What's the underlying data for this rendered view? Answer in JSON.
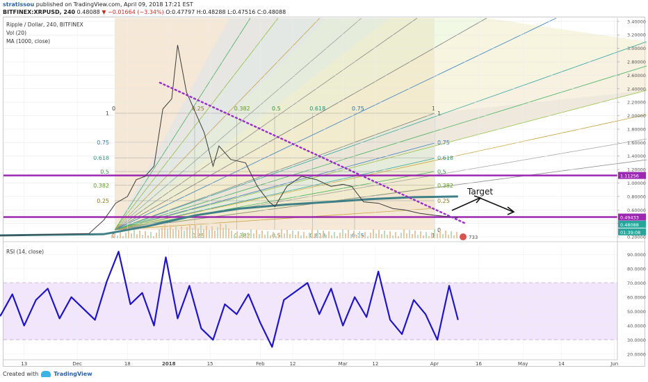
{
  "header": {
    "author": "stratissou",
    "published_text": "published on TradingView.com, April 09, 2018 17:21 EST",
    "symbol": "BITFINEX:XRPUSD, 240",
    "last": "0.48088",
    "change": "▼ −0.01664 (−3.34%)",
    "ohlc": "O:0.47797 H:0.48288 L:0.47516 C:0.48088"
  },
  "legend": {
    "title": "Ripple / Dollar, 240, BITFINEX",
    "vol": "Vol (20)",
    "ma": "MA (1000, close)",
    "rsi": "RSI (14, close)"
  },
  "annotations": {
    "target": "Target",
    "vol_badge": "733"
  },
  "footer": {
    "created": "Created with",
    "brand": "TradingView"
  },
  "colors": {
    "price": "#3a3a3a",
    "ma": "#3f7f86",
    "level": "#9c27b0",
    "rsi": "#1e14c8",
    "rsi_band": "#f1e6fb",
    "trendline": "#9b2fc9"
  },
  "chart_data": [
    {
      "type": "line",
      "title": "Ripple / Dollar, 240, BITFINEX",
      "xlabel": "",
      "ylabel": "",
      "x_ticks": [
        "13",
        "Dec",
        "18",
        "2018",
        "15",
        "Feb",
        "12",
        "Mar",
        "12",
        "Apr",
        "16",
        "May",
        "14",
        "Jun"
      ],
      "y_ticks": [
        "0.20000",
        "0.40000",
        "0.60000",
        "0.80000",
        "1.00000",
        "1.20000",
        "1.40000",
        "1.60000",
        "1.80000",
        "2.00000",
        "2.20000",
        "2.40000",
        "2.60000",
        "2.80000",
        "3.00000",
        "3.20000",
        "3.40000"
      ],
      "ylim": [
        0.18,
        3.45
      ],
      "grid": true,
      "price_labels": [
        "1.11256",
        "0.49433",
        "0.48088",
        "01:39:08"
      ],
      "horizontal_levels": [
        1.11256,
        0.49433
      ],
      "gann_fan_ratios": [
        "0.25",
        "0.382",
        "0.5",
        "0.618",
        "0.75",
        "1"
      ],
      "series": [
        {
          "name": "Ripple / Dollar",
          "x": [
            "2017-11-01",
            "2017-11-15",
            "2017-11-25",
            "2017-12-05",
            "2017-12-10",
            "2017-12-14",
            "2017-12-18",
            "2017-12-21",
            "2017-12-24",
            "2017-12-27",
            "2017-12-30",
            "2018-01-02",
            "2018-01-04",
            "2018-01-07",
            "2018-01-10",
            "2018-01-13",
            "2018-01-16",
            "2018-01-18",
            "2018-01-22",
            "2018-01-27",
            "2018-01-31",
            "2018-02-04",
            "2018-02-06",
            "2018-02-10",
            "2018-02-15",
            "2018-02-20",
            "2018-02-25",
            "2018-03-01",
            "2018-03-04",
            "2018-03-08",
            "2018-03-13",
            "2018-03-18",
            "2018-03-22",
            "2018-03-27",
            "2018-04-01",
            "2018-04-06",
            "2018-04-09"
          ],
          "values": [
            0.21,
            0.23,
            0.24,
            0.25,
            0.45,
            0.7,
            0.8,
            1.05,
            1.1,
            1.25,
            2.1,
            2.25,
            3.05,
            2.35,
            2.05,
            1.75,
            1.25,
            1.55,
            1.35,
            1.3,
            0.95,
            0.72,
            0.65,
            0.95,
            1.1,
            1.05,
            0.95,
            0.98,
            0.95,
            0.72,
            0.7,
            0.62,
            0.6,
            0.55,
            0.52,
            0.5,
            0.48
          ]
        },
        {
          "name": "MA (1000, close)",
          "x": [
            "2017-11-01",
            "2017-12-10",
            "2017-12-25",
            "2018-01-10",
            "2018-01-25",
            "2018-02-10",
            "2018-02-25",
            "2018-03-10",
            "2018-03-25",
            "2018-04-09"
          ],
          "values": [
            0.22,
            0.24,
            0.36,
            0.52,
            0.62,
            0.68,
            0.72,
            0.76,
            0.79,
            0.8
          ]
        }
      ]
    },
    {
      "type": "line",
      "title": "RSI (14, close)",
      "xlabel": "",
      "ylabel": "",
      "y_ticks": [
        "20.0000",
        "30.0000",
        "40.0000",
        "50.0000",
        "60.0000",
        "70.0000",
        "80.0000",
        "90.0000"
      ],
      "ylim": [
        16,
        96
      ],
      "bands": [
        30,
        70
      ],
      "series": [
        {
          "name": "RSI (14, close)",
          "x": [
            "2017-11-01",
            "2017-11-05",
            "2017-11-09",
            "2017-11-13",
            "2017-11-17",
            "2017-11-21",
            "2017-11-25",
            "2017-11-29",
            "2017-12-03",
            "2017-12-07",
            "2017-12-11",
            "2017-12-15",
            "2017-12-19",
            "2017-12-23",
            "2017-12-27",
            "2017-12-31",
            "2018-01-04",
            "2018-01-08",
            "2018-01-12",
            "2018-01-16",
            "2018-01-20",
            "2018-01-24",
            "2018-01-28",
            "2018-02-01",
            "2018-02-05",
            "2018-02-09",
            "2018-02-13",
            "2018-02-17",
            "2018-02-21",
            "2018-02-25",
            "2018-03-01",
            "2018-03-05",
            "2018-03-09",
            "2018-03-13",
            "2018-03-17",
            "2018-03-21",
            "2018-03-25",
            "2018-03-29",
            "2018-04-02",
            "2018-04-06",
            "2018-04-09"
          ],
          "values": [
            55,
            47,
            62,
            40,
            58,
            66,
            45,
            60,
            52,
            44,
            71,
            92,
            55,
            63,
            40,
            88,
            45,
            68,
            38,
            30,
            55,
            48,
            62,
            42,
            25,
            58,
            64,
            70,
            48,
            66,
            40,
            60,
            46,
            78,
            44,
            34,
            58,
            48,
            30,
            68,
            44
          ]
        }
      ]
    }
  ]
}
